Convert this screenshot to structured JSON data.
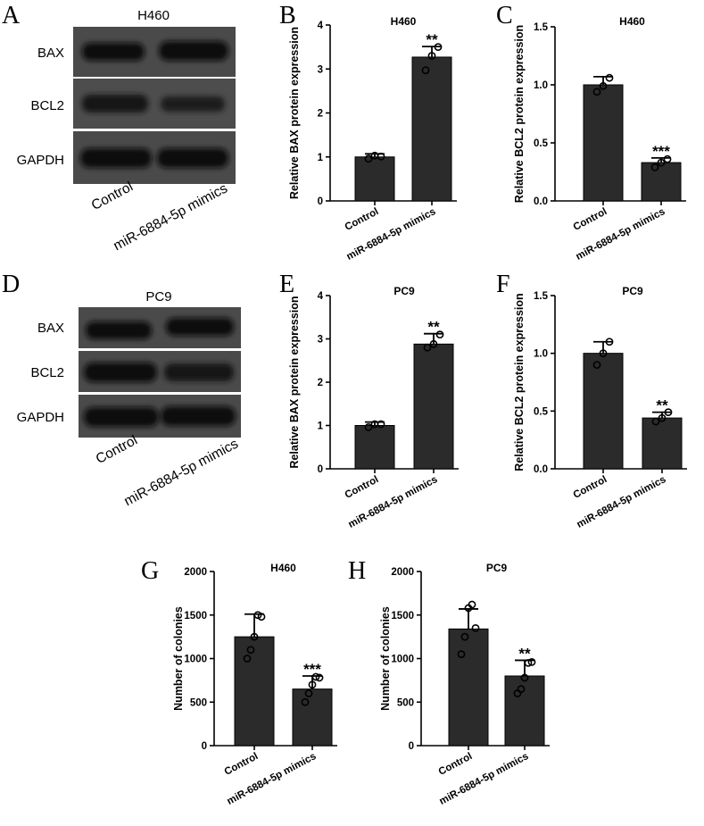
{
  "panel_letters": [
    "A",
    "B",
    "C",
    "D",
    "E",
    "F",
    "G",
    "H"
  ],
  "western_blots": [
    {
      "panel": "A",
      "title": "H460",
      "rows": [
        "BAX",
        "BCL2",
        "GAPDH"
      ],
      "conditions": [
        "Control",
        "miR-6884-5p mimics"
      ]
    },
    {
      "panel": "D",
      "title": "PC9",
      "rows": [
        "BAX",
        "BCL2",
        "GAPDH"
      ],
      "conditions": [
        "Control",
        "miR-6884-5p mimics"
      ]
    }
  ],
  "chart_data": [
    {
      "panel": "B",
      "type": "bar",
      "title": "H460",
      "ylabel": "Relative BAX protein expression",
      "categories": [
        "Control",
        "miR-6884-5p mimics"
      ],
      "values": [
        1.0,
        3.27
      ],
      "errors": [
        0.07,
        0.24
      ],
      "points": [
        [
          0.96,
          1.03,
          1.01
        ],
        [
          2.97,
          3.3,
          3.5
        ]
      ],
      "significance": [
        "",
        "**"
      ],
      "ylim": [
        0,
        4
      ],
      "yticks": [
        "0",
        "1",
        "2",
        "3",
        "4"
      ]
    },
    {
      "panel": "C",
      "type": "bar",
      "title": "H460",
      "ylabel": "Relative BCL2 protein expression",
      "categories": [
        "Control",
        "miR-6884-5p mimics"
      ],
      "values": [
        1.0,
        0.33
      ],
      "errors": [
        0.07,
        0.04
      ],
      "points": [
        [
          0.94,
          0.99,
          1.06
        ],
        [
          0.29,
          0.33,
          0.36
        ]
      ],
      "significance": [
        "",
        "***"
      ],
      "ylim": [
        0,
        1.5
      ],
      "yticks": [
        "0.0",
        "0.5",
        "1.0",
        "1.5"
      ]
    },
    {
      "panel": "E",
      "type": "bar",
      "title": "PC9",
      "ylabel": "Relative BAX protein expression",
      "categories": [
        "Control",
        "miR-6884-5p mimics"
      ],
      "values": [
        1.0,
        2.88
      ],
      "errors": [
        0.08,
        0.24
      ],
      "points": [
        [
          0.96,
          1.03,
          1.03
        ],
        [
          2.8,
          2.88,
          3.1
        ]
      ],
      "significance": [
        "",
        "**"
      ],
      "ylim": [
        0,
        4
      ],
      "yticks": [
        "0",
        "1",
        "2",
        "3",
        "4"
      ]
    },
    {
      "panel": "F",
      "type": "bar",
      "title": "PC9",
      "ylabel": "Relative BCL2 protein expression",
      "categories": [
        "Control",
        "miR-6884-5p mimics"
      ],
      "values": [
        1.0,
        0.44
      ],
      "errors": [
        0.1,
        0.05
      ],
      "points": [
        [
          0.9,
          1.0,
          1.1
        ],
        [
          0.41,
          0.44,
          0.49
        ]
      ],
      "significance": [
        "",
        "**"
      ],
      "ylim": [
        0,
        1.5
      ],
      "yticks": [
        "0.0",
        "0.5",
        "1.0",
        "1.5"
      ]
    },
    {
      "panel": "G",
      "type": "bar",
      "title": "H460",
      "ylabel": "Number of colonies",
      "categories": [
        "Control",
        "miR-6884-5p mimics"
      ],
      "values": [
        1250,
        650
      ],
      "errors": [
        260,
        150
      ],
      "points": [
        [
          1000,
          1100,
          1250,
          1500,
          1480
        ],
        [
          500,
          600,
          700,
          790,
          780
        ]
      ],
      "significance": [
        "",
        "***"
      ],
      "ylim": [
        0,
        2000
      ],
      "yticks": [
        "0",
        "500",
        "1000",
        "1500",
        "2000"
      ]
    },
    {
      "panel": "H",
      "type": "bar",
      "title": "PC9",
      "ylabel": "Number of colonies",
      "categories": [
        "Control",
        "miR-6884-5p mimics"
      ],
      "values": [
        1340,
        800
      ],
      "errors": [
        230,
        180
      ],
      "points": [
        [
          1050,
          1250,
          1580,
          1620,
          1350
        ],
        [
          600,
          650,
          780,
          950,
          960
        ]
      ],
      "significance": [
        "",
        "**"
      ],
      "ylim": [
        0,
        2000
      ],
      "yticks": [
        "0",
        "500",
        "1000",
        "1500",
        "2000"
      ]
    }
  ]
}
